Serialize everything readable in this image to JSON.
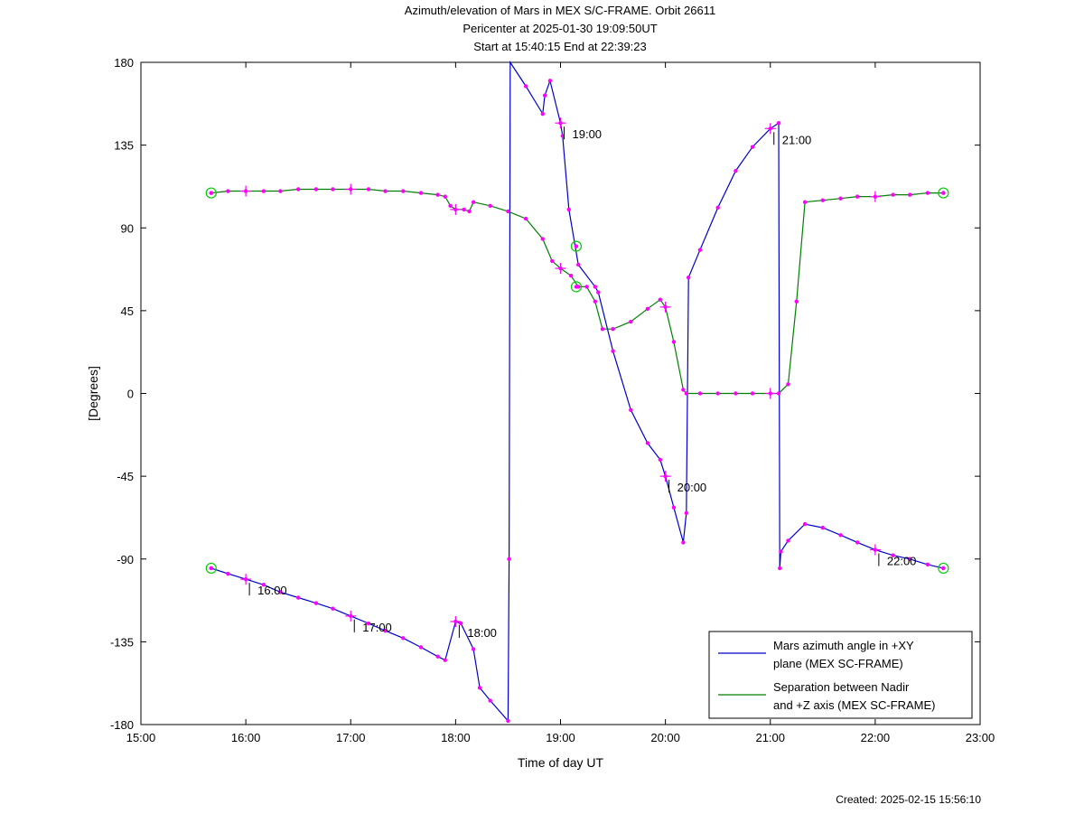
{
  "titles": {
    "line1": "Azimuth/elevation of Mars in MEX S/C-FRAME.  Orbit 26611",
    "line2": "Pericenter at 2025-01-30 19:09:50UT",
    "line3": "Start at 15:40:15 End at 22:39:23"
  },
  "footer": {
    "created": "Created: 2025-02-15 15:56:10"
  },
  "colors": {
    "azimuth": "#0000cc",
    "separation": "#008000",
    "markers": "#ff00ff",
    "endpoints": "#00cc00"
  },
  "chart_data": {
    "type": "line",
    "xlabel": "Time of day UT",
    "ylabel": "[Degrees]",
    "xlim": [
      15.0,
      23.0
    ],
    "ylim": [
      -180,
      180
    ],
    "x_ticks": [
      "15:00",
      "16:00",
      "17:00",
      "18:00",
      "19:00",
      "20:00",
      "21:00",
      "22:00",
      "23:00"
    ],
    "y_ticks": [
      "180",
      "135",
      "90",
      "45",
      "0",
      "-45",
      "-90",
      "-135",
      "-180"
    ],
    "grid": false,
    "legend_position": "bottom-right",
    "series": [
      {
        "name": "Mars azimuth angle in +XY plane (MEX SC-FRAME)",
        "legend_line1": "Mars azimuth angle in +XY",
        "legend_line2": "plane (MEX SC-FRAME)",
        "color": "#0000cc",
        "x": [
          15.67,
          15.83,
          16.0,
          16.17,
          16.33,
          16.5,
          16.67,
          16.83,
          17.0,
          17.17,
          17.33,
          17.5,
          17.67,
          17.83,
          17.9,
          18.0,
          18.05,
          18.17,
          18.23,
          18.33,
          18.5,
          18.51,
          18.52,
          18.67,
          18.83,
          18.85,
          18.9,
          19.0,
          19.02,
          19.08,
          19.17,
          19.33,
          19.36,
          19.5,
          19.67,
          19.83,
          19.95,
          20.0,
          20.08,
          20.17,
          20.2,
          20.22,
          20.33,
          20.5,
          20.67,
          20.83,
          21.0,
          21.08,
          21.09,
          21.1,
          21.17,
          21.33,
          21.5,
          21.67,
          21.83,
          22.0,
          22.17,
          22.33,
          22.5,
          22.65
        ],
        "y": [
          -95,
          -98,
          -101,
          -104,
          -108,
          -111,
          -114,
          -117,
          -121,
          -125,
          -129,
          -133,
          -138,
          -143,
          -145,
          -124,
          -125,
          -139,
          -160,
          -167,
          -178,
          -90,
          180,
          167,
          152,
          162,
          170,
          147,
          140,
          100,
          70,
          58,
          55,
          23,
          -9,
          -27,
          -36,
          -45,
          -62,
          -81,
          -65,
          63,
          78,
          101,
          121,
          134,
          144,
          147,
          -95,
          -86,
          -80,
          -71,
          -73,
          -77,
          -81,
          -85,
          -88,
          -90,
          -93,
          -95
        ]
      },
      {
        "name": "Separation between Nadir and +Z axis (MEX SC-FRAME)",
        "legend_line1": "Separation between Nadir",
        "legend_line2": "and +Z axis (MEX SC-FRAME)",
        "color": "#008000",
        "x": [
          15.67,
          15.83,
          16.0,
          16.17,
          16.33,
          16.5,
          16.67,
          16.83,
          17.0,
          17.17,
          17.33,
          17.5,
          17.67,
          17.83,
          17.9,
          17.95,
          18.0,
          18.08,
          18.13,
          18.17,
          18.33,
          18.5,
          18.67,
          18.83,
          18.92,
          19.0,
          19.1,
          19.17,
          19.25,
          19.33,
          19.4,
          19.5,
          19.67,
          19.83,
          19.95,
          20.0,
          20.08,
          20.17,
          20.2,
          20.33,
          20.5,
          20.67,
          20.83,
          21.0,
          21.08,
          21.17,
          21.25,
          21.33,
          21.5,
          21.67,
          21.83,
          22.0,
          22.17,
          22.33,
          22.5,
          22.65
        ],
        "y": [
          109,
          110,
          110,
          110,
          110,
          111,
          111,
          111,
          111,
          111,
          110,
          110,
          109,
          108,
          107,
          102,
          100,
          100,
          99,
          104,
          102,
          99,
          95,
          84,
          72,
          68,
          64,
          58,
          58,
          50,
          35,
          35,
          39,
          46,
          51,
          47,
          28,
          2,
          0,
          0,
          0,
          0,
          0,
          0,
          0,
          5,
          50,
          104,
          105,
          106,
          107,
          107,
          108,
          108,
          109,
          109
        ]
      }
    ],
    "time_annotations": [
      {
        "label": "16:00",
        "x": 16.0,
        "y": -101
      },
      {
        "label": "17:00",
        "x": 17.0,
        "y": -121
      },
      {
        "label": "18:00",
        "x": 18.0,
        "y": -124
      },
      {
        "label": "19:00",
        "x": 19.0,
        "y": 147
      },
      {
        "label": "20:00",
        "x": 20.0,
        "y": -45
      },
      {
        "label": "21:00",
        "x": 21.0,
        "y": 144
      },
      {
        "label": "22:00",
        "x": 22.0,
        "y": -85
      }
    ],
    "hour_crosses": [
      {
        "x": 16.0,
        "y": 110
      },
      {
        "x": 17.0,
        "y": 111
      },
      {
        "x": 18.0,
        "y": 100
      },
      {
        "x": 19.0,
        "y": 68
      },
      {
        "x": 20.0,
        "y": 47
      },
      {
        "x": 21.0,
        "y": 0
      },
      {
        "x": 22.0,
        "y": 107
      }
    ],
    "endpoint_circles": [
      {
        "x": 15.67,
        "y": 109
      },
      {
        "x": 22.65,
        "y": 109
      },
      {
        "x": 15.67,
        "y": -95
      },
      {
        "x": 22.65,
        "y": -95
      },
      {
        "x": 19.15,
        "y": 80
      },
      {
        "x": 19.15,
        "y": 58
      }
    ]
  }
}
